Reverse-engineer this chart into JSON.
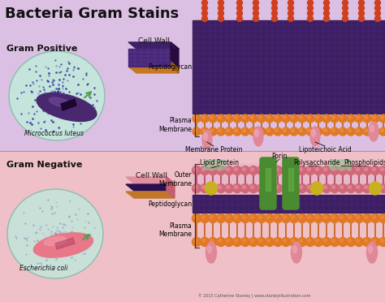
{
  "title": "Bacteria Gram Stains",
  "title_fontsize": 13,
  "gram_positive_label": "Gram Positive",
  "gram_negative_label": "Gram Negative",
  "micrococcus_label": "Micrococcus luteus",
  "ecoli_label": "Escherichia coli",
  "cell_wall_label": "Cell Wall",
  "peptidoglycan_label": "Peptidoglycan",
  "plasma_membrane_label": "Plasma\nMembrane",
  "outer_membrane_label": "Outer\nMembrane",
  "membrane_protein_label": "Membrane Protein",
  "lipoteichoic_label": "Lipoteichoic Acid",
  "porin_label": "Porin",
  "lipid_protein_label": "Lipid Protein",
  "polysaccharide_label": "Polysaccharide",
  "phospholipids_label": "Phospholipids",
  "copyright": "© 2015 Catherine Stanley | www.stanleyillustration.com",
  "purple_dark": "#3d1f66",
  "orange_bead": "#e07828",
  "pink_bead": "#d87878",
  "pink_membrane": "#e8a0b0",
  "green_porin": "#4a8a30",
  "yellow_lipid": "#c8b020",
  "pink_protein": "#e88898",
  "bg_top": "#dcc8e4",
  "bg_bot": "#f0c4cc",
  "teichoic_red": "#d84828",
  "orange_slab": "#c87820",
  "purple_slab": "#3d1f66",
  "pink_slab": "#e090a0"
}
